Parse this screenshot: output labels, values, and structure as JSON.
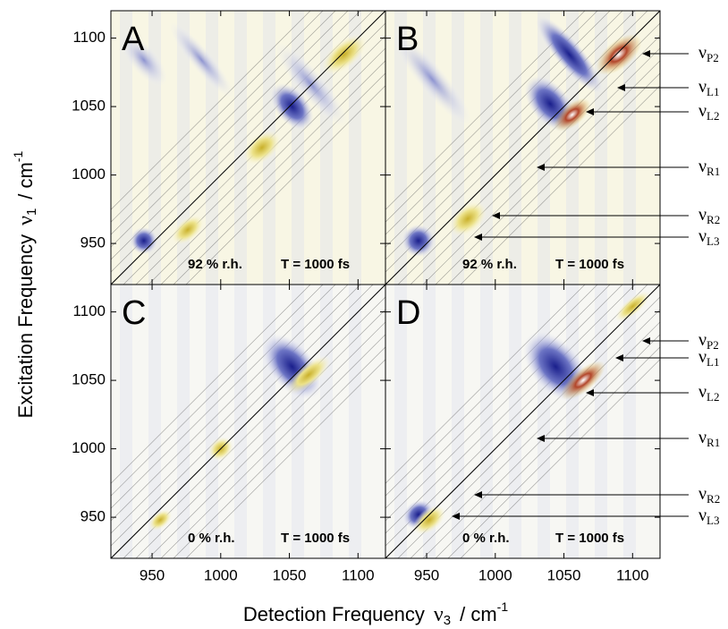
{
  "chart_data": {
    "type": "contour",
    "x_label": {
      "text": "Detection Frequency",
      "symbol": "ν",
      "index": "3",
      "unit": "/  cm",
      "exponent": "-1"
    },
    "y_label": {
      "text": "Excitation Frequency",
      "symbol": "ν",
      "index": "1",
      "unit": "/  cm",
      "exponent": "-1"
    },
    "xlim": [
      920,
      1120
    ],
    "ylim": [
      920,
      1120
    ],
    "xticks": [
      950,
      1000,
      1050,
      1100
    ],
    "yticks": [
      950,
      1000,
      1050,
      1100
    ],
    "panels": [
      {
        "label": "A",
        "humidity": "92 % r.h.",
        "waiting_time": "T = 1000 fs",
        "peaks": []
      },
      {
        "label": "B",
        "humidity": "92 % r.h.",
        "waiting_time": "T = 1000 fs",
        "peaks": [
          {
            "symbol": "ν",
            "subscript": "P2"
          },
          {
            "symbol": "ν",
            "subscript": "L1"
          },
          {
            "symbol": "ν",
            "subscript": "L2"
          },
          {
            "symbol": "ν",
            "subscript": "R1"
          },
          {
            "symbol": "ν",
            "subscript": "R2"
          },
          {
            "symbol": "ν",
            "subscript": "L3"
          }
        ]
      },
      {
        "label": "C",
        "humidity": "0 % r.h.",
        "waiting_time": "T = 1000 fs",
        "peaks": []
      },
      {
        "label": "D",
        "humidity": "0 % r.h.",
        "waiting_time": "T = 1000 fs",
        "peaks": [
          {
            "symbol": "ν",
            "subscript": "P2"
          },
          {
            "symbol": "ν",
            "subscript": "L1"
          },
          {
            "symbol": "ν",
            "subscript": "L2"
          },
          {
            "symbol": "ν",
            "subscript": "R1"
          },
          {
            "symbol": "ν",
            "subscript": "R2"
          },
          {
            "symbol": "ν",
            "subscript": "L3"
          }
        ]
      }
    ]
  }
}
